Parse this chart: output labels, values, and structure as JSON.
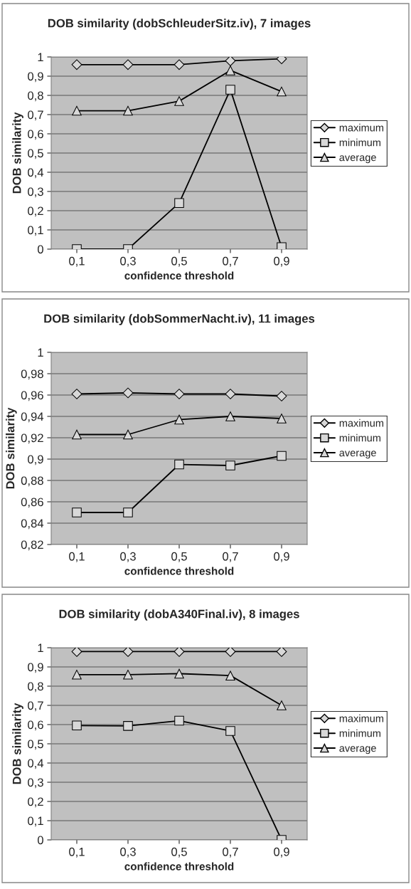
{
  "chart_data": [
    {
      "type": "line",
      "title": "DOB similarity (dobSchleuderSitz.iv), 7 images",
      "xlabel": "confidence threshold",
      "ylabel": "DOB similarity",
      "categories": [
        "0,1",
        "0,3",
        "0,5",
        "0,7",
        "0,9"
      ],
      "series": [
        {
          "name": "maximum",
          "color": "#000000",
          "marker": "diamond",
          "values": [
            0.96,
            0.96,
            0.96,
            0.98,
            0.99
          ]
        },
        {
          "name": "minimum",
          "color": "#000000",
          "marker": "square",
          "values": [
            0.0,
            0.0,
            0.24,
            0.83,
            0.01
          ]
        },
        {
          "name": "average",
          "color": "#000000",
          "marker": "triangle",
          "values": [
            0.72,
            0.72,
            0.77,
            0.93,
            0.82
          ]
        }
      ],
      "ylim": [
        0,
        1
      ],
      "yticks": [
        0,
        {
          "value": 0.1,
          "label": "0,1"
        },
        {
          "value": 0.2,
          "label": "0,2"
        },
        {
          "value": 0.3,
          "label": "0,3"
        },
        {
          "value": 0.4,
          "label": "0,4"
        },
        {
          "value": 0.5,
          "label": "0,5"
        },
        {
          "value": 0.6,
          "label": "0,6"
        },
        {
          "value": 0.7,
          "label": "0,7"
        },
        {
          "value": 0.8,
          "label": "0,8"
        },
        {
          "value": 0.9,
          "label": "0,9"
        },
        1
      ],
      "grid": "y",
      "legend": "right"
    },
    {
      "type": "line",
      "title": "DOB similarity (dobSommerNacht.iv), 11 images",
      "xlabel": "confidence threshold",
      "ylabel": "DOB similarity",
      "categories": [
        "0,1",
        "0,3",
        "0,5",
        "0,7",
        "0,9"
      ],
      "series": [
        {
          "name": "maximum",
          "color": "#000000",
          "marker": "diamond",
          "values": [
            0.961,
            0.962,
            0.961,
            0.961,
            0.959
          ]
        },
        {
          "name": "minimum",
          "color": "#000000",
          "marker": "square",
          "values": [
            0.85,
            0.85,
            0.895,
            0.894,
            0.903
          ]
        },
        {
          "name": "average",
          "color": "#000000",
          "marker": "triangle",
          "values": [
            0.923,
            0.923,
            0.937,
            0.94,
            0.938
          ]
        }
      ],
      "ylim": [
        0.82,
        1
      ],
      "yticks": [
        {
          "value": 0.82,
          "label": "0,82"
        },
        {
          "value": 0.84,
          "label": "0,84"
        },
        {
          "value": 0.86,
          "label": "0,86"
        },
        {
          "value": 0.88,
          "label": "0,88"
        },
        {
          "value": 0.9,
          "label": "0,9"
        },
        {
          "value": 0.92,
          "label": "0,92"
        },
        {
          "value": 0.94,
          "label": "0,94"
        },
        {
          "value": 0.96,
          "label": "0,96"
        },
        {
          "value": 0.98,
          "label": "0,98"
        },
        1
      ],
      "grid": "y",
      "legend": "right"
    },
    {
      "type": "line",
      "title": "DOB similarity (dobA340Final.iv), 8 images",
      "xlabel": "confidence threshold",
      "ylabel": "DOB similarity",
      "categories": [
        "0,1",
        "0,3",
        "0,5",
        "0,7",
        "0,9"
      ],
      "series": [
        {
          "name": "maximum",
          "color": "#000000",
          "marker": "diamond",
          "values": [
            0.98,
            0.98,
            0.98,
            0.98,
            0.98
          ]
        },
        {
          "name": "minimum",
          "color": "#000000",
          "marker": "square",
          "values": [
            0.595,
            0.593,
            0.62,
            0.567,
            0.0
          ]
        },
        {
          "name": "average",
          "color": "#000000",
          "marker": "triangle",
          "values": [
            0.86,
            0.86,
            0.865,
            0.855,
            0.7
          ]
        }
      ],
      "ylim": [
        0,
        1
      ],
      "yticks": [
        0,
        {
          "value": 0.1,
          "label": "0,1"
        },
        {
          "value": 0.2,
          "label": "0,2"
        },
        {
          "value": 0.3,
          "label": "0,3"
        },
        {
          "value": 0.4,
          "label": "0,4"
        },
        {
          "value": 0.5,
          "label": "0,5"
        },
        {
          "value": 0.6,
          "label": "0,6"
        },
        {
          "value": 0.7,
          "label": "0,7"
        },
        {
          "value": 0.8,
          "label": "0,8"
        },
        {
          "value": 0.9,
          "label": "0,9"
        },
        1
      ],
      "grid": "y",
      "legend": "right"
    }
  ]
}
